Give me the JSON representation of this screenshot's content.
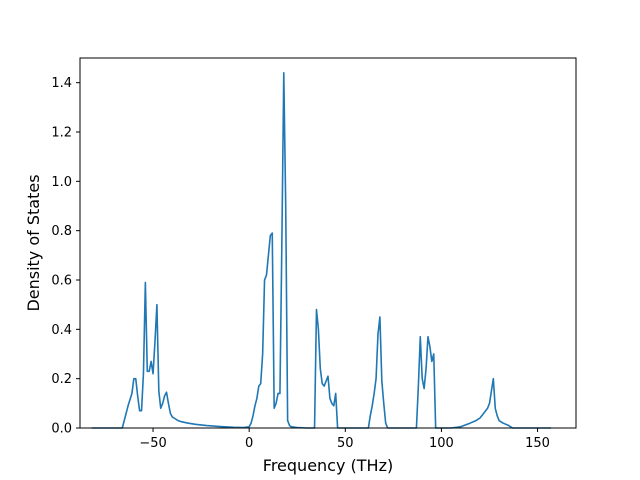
{
  "chart_data": {
    "type": "line",
    "title": "",
    "xlabel": "Frequency (THz)",
    "ylabel": "Density of States",
    "xlim": [
      -88,
      170
    ],
    "ylim": [
      0,
      1.5
    ],
    "xticks": [
      -50,
      0,
      50,
      100,
      150
    ],
    "yticks": [
      0.0,
      0.2,
      0.4,
      0.6,
      0.8,
      1.0,
      1.2,
      1.4
    ],
    "xtick_labels": [
      "−50",
      "0",
      "50",
      "100",
      "150"
    ],
    "ytick_labels": [
      "0.0",
      "0.2",
      "0.4",
      "0.6",
      "0.8",
      "1.0",
      "1.2",
      "1.4"
    ],
    "grid": false,
    "line_color": "#1f77b4",
    "series": [
      {
        "x": [
          -82,
          -66,
          -63,
          -61,
          -60,
          -59,
          -58,
          -57,
          -56,
          -55,
          -54,
          -53,
          -52,
          -51,
          -50,
          -49,
          -48,
          -47,
          -46,
          -45,
          -44,
          -43,
          -42,
          -41,
          -40,
          -39,
          -38,
          -37,
          -35,
          -32,
          -28,
          -22,
          -15,
          -8,
          -3,
          0,
          1,
          2,
          3,
          4,
          5,
          6,
          7,
          8,
          9,
          10,
          11,
          12,
          13,
          14,
          15,
          16,
          17,
          18,
          19,
          20,
          21,
          22,
          25,
          30,
          34,
          35,
          36,
          37,
          38,
          39,
          40,
          41,
          42,
          43,
          44,
          45,
          46,
          47,
          48,
          50,
          55,
          60,
          62,
          63,
          64,
          65,
          66,
          67,
          68,
          69,
          70,
          71,
          72,
          75,
          80,
          85,
          87,
          88,
          89,
          90,
          91,
          92,
          93,
          94,
          95,
          96,
          97,
          98,
          99,
          100,
          105,
          110,
          115,
          118,
          120,
          122,
          124,
          125,
          126,
          127,
          128,
          129,
          130,
          132,
          135,
          137,
          140,
          145,
          150,
          157
        ],
        "y": [
          0.0,
          0.0,
          0.09,
          0.14,
          0.2,
          0.2,
          0.13,
          0.07,
          0.07,
          0.22,
          0.59,
          0.23,
          0.23,
          0.27,
          0.22,
          0.35,
          0.5,
          0.15,
          0.08,
          0.1,
          0.13,
          0.145,
          0.1,
          0.06,
          0.045,
          0.04,
          0.035,
          0.03,
          0.025,
          0.02,
          0.015,
          0.01,
          0.006,
          0.003,
          0.002,
          0.005,
          0.02,
          0.05,
          0.09,
          0.12,
          0.17,
          0.18,
          0.3,
          0.6,
          0.62,
          0.7,
          0.78,
          0.79,
          0.08,
          0.1,
          0.14,
          0.14,
          0.75,
          1.44,
          0.9,
          0.03,
          0.01,
          0.005,
          0.002,
          0.0,
          0.0,
          0.48,
          0.4,
          0.24,
          0.18,
          0.17,
          0.19,
          0.21,
          0.12,
          0.1,
          0.09,
          0.14,
          0.0,
          0.0,
          0.0,
          0.0,
          0.0,
          0.0,
          0.0,
          0.05,
          0.09,
          0.14,
          0.2,
          0.38,
          0.45,
          0.19,
          0.1,
          0.02,
          0.0,
          0.0,
          0.0,
          0.0,
          0.0,
          0.17,
          0.37,
          0.2,
          0.16,
          0.24,
          0.37,
          0.33,
          0.27,
          0.3,
          0.0,
          0.0,
          0.0,
          0.0,
          0.0,
          0.005,
          0.02,
          0.03,
          0.04,
          0.06,
          0.08,
          0.1,
          0.15,
          0.2,
          0.08,
          0.05,
          0.03,
          0.02,
          0.01,
          0.0,
          0.0,
          0.0,
          0.0,
          0.0
        ]
      }
    ]
  }
}
